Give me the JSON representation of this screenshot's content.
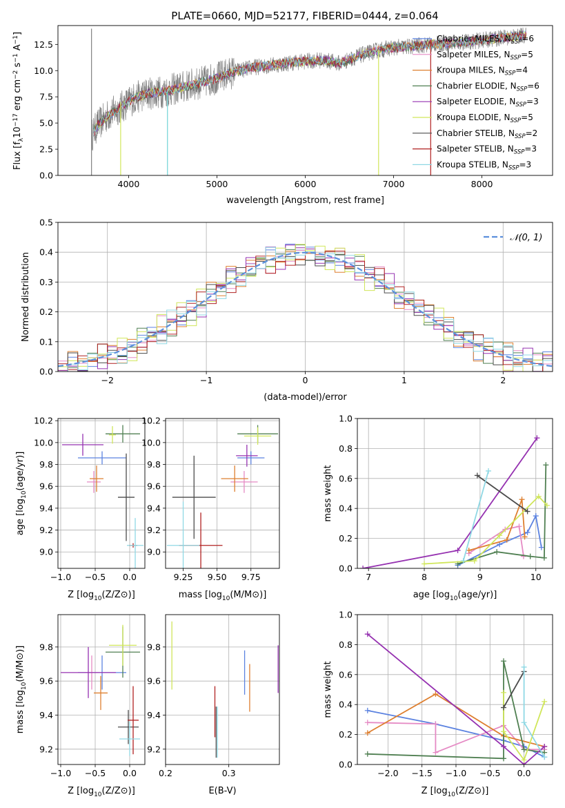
{
  "figure": {
    "title": "PLATE=0660, MJD=52177, FIBERID=0444, z=0.064"
  },
  "colors": {
    "chabrier_miles": "#5b82e0",
    "salpeter_miles": "#e58ac4",
    "kroupa_miles": "#de7f2f",
    "chabrier_elodie": "#4f7f51",
    "salpeter_elodie": "#9531b0",
    "kroupa_elodie": "#d0e65a",
    "chabrier_stelib": "#4b4b4b",
    "salpeter_stelib": "#b02020",
    "kroupa_stelib": "#8fd8e4",
    "data_gray": "#808080",
    "model_cyan": "#6fd3d6",
    "normal_curve": "#5b8fdc",
    "grid": "#b0b0b0"
  },
  "chart_data": [
    {
      "id": "spectrum",
      "type": "line",
      "title": "PLATE=0660, MJD=52177, FIBERID=0444, z=0.064",
      "xlabel": "wavelength [Angstrom, rest frame]",
      "ylabel_parts": [
        "Flux [f",
        "λ",
        "10",
        "−17",
        " erg cm",
        "−2",
        " s",
        "−1",
        " A",
        "−1",
        "]"
      ],
      "xlim": [
        3200,
        8800
      ],
      "ylim": [
        0,
        14.3
      ],
      "xticks": [
        4000,
        5000,
        6000,
        7000,
        8000
      ],
      "yticks": [
        0.0,
        2.5,
        5.0,
        7.5,
        10.0,
        12.5
      ],
      "grid": false,
      "legend_position": "right",
      "legend": [
        {
          "name": "Chabrier MILES",
          "n": "6",
          "color_key": "chabrier_miles"
        },
        {
          "name": "Salpeter MILES",
          "n": "5",
          "color_key": "salpeter_miles"
        },
        {
          "name": "Kroupa MILES",
          "n": "4",
          "color_key": "kroupa_miles"
        },
        {
          "name": "Chabrier ELODIE",
          "n": "6",
          "color_key": "chabrier_elodie"
        },
        {
          "name": "Salpeter ELODIE",
          "n": "3",
          "color_key": "salpeter_elodie"
        },
        {
          "name": "Kroupa ELODIE",
          "n": "5",
          "color_key": "kroupa_elodie"
        },
        {
          "name": "Chabrier STELIB",
          "n": "2",
          "color_key": "chabrier_stelib"
        },
        {
          "name": "Salpeter STELIB",
          "n": "3",
          "color_key": "salpeter_stelib"
        },
        {
          "name": "Kroupa STELIB",
          "n": "3",
          "color_key": "kroupa_stelib"
        }
      ],
      "legend_n_prefix": "N",
      "legend_n_sub": "SSP",
      "continuum": {
        "x": [
          3580,
          3650,
          3750,
          3850,
          3950,
          4050,
          4200,
          4400,
          4600,
          4800,
          5000,
          5200,
          5400,
          5600,
          5800,
          6000,
          6200,
          6400,
          6600,
          6800,
          7000,
          7200,
          7400,
          7600,
          7800,
          8000,
          8200,
          8500
        ],
        "y": [
          3.8,
          4.8,
          5.6,
          6.2,
          6.7,
          7.3,
          7.8,
          8.0,
          8.4,
          8.8,
          9.3,
          9.9,
          10.3,
          10.5,
          10.7,
          10.9,
          11.0,
          10.7,
          11.4,
          11.9,
          12.2,
          12.3,
          12.5,
          12.6,
          12.7,
          12.9,
          13.1,
          13.4
        ]
      },
      "spikes": [
        {
          "x": 3580,
          "y_low": 0.0,
          "y_high": 14.0,
          "color_key": "data_gray"
        },
        {
          "x": 4440,
          "y_low": 0.0,
          "y_high": 8.0,
          "color_key": "model_cyan"
        },
        {
          "x": 6830,
          "y_low": 0.0,
          "y_high": 12.0,
          "color_key": "kroupa_elodie"
        },
        {
          "x": 3910,
          "y_low": 0.0,
          "y_high": 7.0,
          "color_key": "kroupa_elodie"
        },
        {
          "x": 7420,
          "y_low": 0.0,
          "y_high": 12.8,
          "color_key": "salpeter_stelib"
        }
      ]
    },
    {
      "id": "residuals",
      "type": "histogram",
      "xlabel": "(data-model)/error",
      "ylabel": "Normed distribution",
      "xlim": [
        -2.5,
        2.5
      ],
      "ylim": [
        0,
        0.5
      ],
      "xticks": [
        -2,
        -1,
        0,
        1,
        2
      ],
      "yticks": [
        0.0,
        0.1,
        0.2,
        0.3,
        0.4,
        0.5
      ],
      "grid": true,
      "legend_position": "top-right",
      "legend": [
        {
          "name": "𝒩(0, 1)",
          "color_key": "normal_curve"
        }
      ],
      "bin_width": 0.1,
      "bin_start": -2.5,
      "series_jitter": [
        0.012,
        -0.015,
        0.02,
        -0.01,
        0.018,
        -0.02,
        0.008,
        -0.012,
        0.015
      ]
    },
    {
      "id": "age_vs_Z",
      "type": "errorbar",
      "xlabel": "Z [log10(Z/Z⊙)]",
      "ylabel": "age [log10(age/yr)]",
      "xlim": [
        -1.04,
        0.22
      ],
      "ylim": [
        8.85,
        10.22
      ],
      "xticks": [
        -1.0,
        -0.5,
        0.0
      ],
      "yticks": [
        9.0,
        9.2,
        9.4,
        9.6,
        9.8,
        10.0,
        10.2
      ],
      "grid": true,
      "points": [
        {
          "color_key": "chabrier_miles",
          "x": -0.4,
          "xerr": 0.35,
          "y": 9.86,
          "yerr": 0.06
        },
        {
          "color_key": "salpeter_miles",
          "x": -0.52,
          "xerr": 0.1,
          "y": 9.64,
          "yerr": 0.1
        },
        {
          "color_key": "kroupa_miles",
          "x": -0.48,
          "xerr": 0.1,
          "y": 9.67,
          "yerr": 0.12
        },
        {
          "color_key": "chabrier_elodie",
          "x": -0.1,
          "xerr": 0.25,
          "y": 10.08,
          "yerr": 0.08
        },
        {
          "color_key": "salpeter_elodie",
          "x": -0.68,
          "xerr": 0.3,
          "y": 9.98,
          "yerr": 0.1
        },
        {
          "color_key": "kroupa_elodie",
          "x": -0.25,
          "xerr": 0.05,
          "y": 10.07,
          "yerr": 0.08
        },
        {
          "color_key": "chabrier_stelib",
          "x": -0.05,
          "xerr": 0.12,
          "y": 9.5,
          "yerr": 0.4
        },
        {
          "color_key": "salpeter_stelib",
          "x": 0.05,
          "xerr": 0.06,
          "y": 9.06,
          "yerr": 0.02
        },
        {
          "color_key": "kroupa_stelib",
          "x": 0.08,
          "xerr": 0.12,
          "y": 9.06,
          "yerr": 0.25
        }
      ]
    },
    {
      "id": "age_vs_mass",
      "type": "errorbar",
      "xlabel": "mass [log10(M/M⊙)]",
      "ylabel": "",
      "xlim": [
        9.12,
        9.96
      ],
      "ylim": [
        8.85,
        10.22
      ],
      "xticks": [
        9.25,
        9.5,
        9.75
      ],
      "yticks": [
        9.0,
        9.2,
        9.4,
        9.6,
        9.8,
        10.0,
        10.2
      ],
      "grid": true,
      "points": [
        {
          "color_key": "chabrier_miles",
          "x": 9.75,
          "xerr": 0.1,
          "y": 9.86,
          "yerr": 0.06
        },
        {
          "color_key": "salpeter_miles",
          "x": 9.7,
          "xerr": 0.1,
          "y": 9.64,
          "yerr": 0.1
        },
        {
          "color_key": "kroupa_miles",
          "x": 9.63,
          "xerr": 0.1,
          "y": 9.67,
          "yerr": 0.12
        },
        {
          "color_key": "chabrier_elodie",
          "x": 9.8,
          "xerr": 0.15,
          "y": 10.08,
          "yerr": 0.08
        },
        {
          "color_key": "salpeter_elodie",
          "x": 9.72,
          "xerr": 0.08,
          "y": 9.88,
          "yerr": 0.1
        },
        {
          "color_key": "kroupa_elodie",
          "x": 9.8,
          "xerr": 0.1,
          "y": 10.06,
          "yerr": 0.08
        },
        {
          "color_key": "chabrier_stelib",
          "x": 9.33,
          "xerr": 0.16,
          "y": 9.5,
          "yerr": 0.38
        },
        {
          "color_key": "salpeter_stelib",
          "x": 9.38,
          "xerr": 0.16,
          "y": 9.06,
          "yerr": 0.3
        },
        {
          "color_key": "kroupa_stelib",
          "x": 9.25,
          "xerr": 0.12,
          "y": 9.06,
          "yerr": 0.4
        }
      ]
    },
    {
      "id": "mass_weight_vs_age",
      "type": "line",
      "xlabel": "age [log10(age/yr)]",
      "ylabel": "mass weight",
      "xlim": [
        6.8,
        10.3
      ],
      "ylim": [
        0,
        1.0
      ],
      "xticks": [
        7,
        8,
        9,
        10
      ],
      "yticks": [
        0.0,
        0.2,
        0.4,
        0.6,
        0.8,
        1.0
      ],
      "grid": true,
      "series": [
        {
          "color_key": "chabrier_miles",
          "x": [
            8.6,
            9.35,
            9.85,
            10.0,
            10.1
          ],
          "y": [
            0.02,
            0.16,
            0.24,
            0.35,
            0.14
          ]
        },
        {
          "color_key": "salpeter_miles",
          "x": [
            8.8,
            9.45,
            9.7,
            9.78
          ],
          "y": [
            0.1,
            0.26,
            0.28,
            0.08
          ]
        },
        {
          "color_key": "kroupa_miles",
          "x": [
            8.8,
            9.48,
            9.75,
            9.8
          ],
          "y": [
            0.12,
            0.19,
            0.46,
            0.21
          ]
        },
        {
          "color_key": "chabrier_elodie",
          "x": [
            8.6,
            9.3,
            9.9,
            10.15,
            10.18
          ],
          "y": [
            0.03,
            0.11,
            0.08,
            0.07,
            0.69
          ]
        },
        {
          "color_key": "salpeter_elodie",
          "x": [
            6.9,
            8.6,
            10.02
          ],
          "y": [
            0.0,
            0.12,
            0.87
          ]
        },
        {
          "color_key": "kroupa_elodie",
          "x": [
            8.0,
            8.9,
            9.35,
            10.05,
            10.2
          ],
          "y": [
            0.03,
            0.05,
            0.22,
            0.48,
            0.42
          ]
        },
        {
          "color_key": "chabrier_stelib",
          "x": [
            8.95,
            9.85
          ],
          "y": [
            0.62,
            0.38
          ]
        },
        {
          "color_key": "kroupa_stelib",
          "x": [
            8.7,
            9.15
          ],
          "y": [
            0.05,
            0.65
          ]
        }
      ]
    },
    {
      "id": "mass_vs_Z",
      "type": "errorbar",
      "xlabel": "Z [log10(Z/Z⊙)]",
      "ylabel": "mass [log10(M/M⊙)]",
      "xlim": [
        -1.04,
        0.22
      ],
      "ylim": [
        9.11,
        9.99
      ],
      "xticks": [
        -1.0,
        -0.5,
        0.0
      ],
      "yticks": [
        9.2,
        9.4,
        9.6,
        9.8
      ],
      "grid": true,
      "points": [
        {
          "color_key": "chabrier_miles",
          "x": -0.4,
          "xerr": 0.35,
          "y": 9.65,
          "yerr": 0.1
        },
        {
          "color_key": "salpeter_miles",
          "x": -0.55,
          "xerr": 0.1,
          "y": 9.65,
          "yerr": 0.1
        },
        {
          "color_key": "kroupa_miles",
          "x": -0.42,
          "xerr": 0.1,
          "y": 9.53,
          "yerr": 0.1
        },
        {
          "color_key": "chabrier_elodie",
          "x": -0.1,
          "xerr": 0.25,
          "y": 9.77,
          "yerr": 0.15
        },
        {
          "color_key": "salpeter_elodie",
          "x": -0.6,
          "xerr": 0.4,
          "y": 9.65,
          "yerr": 0.15
        },
        {
          "color_key": "kroupa_elodie",
          "x": -0.1,
          "xerr": 0.2,
          "y": 9.81,
          "yerr": 0.12
        },
        {
          "color_key": "chabrier_stelib",
          "x": -0.02,
          "xerr": 0.15,
          "y": 9.33,
          "yerr": 0.1
        },
        {
          "color_key": "salpeter_stelib",
          "x": 0.05,
          "xerr": 0.08,
          "y": 9.37,
          "yerr": 0.2
        },
        {
          "color_key": "kroupa_stelib",
          "x": 0.0,
          "xerr": 0.15,
          "y": 9.26,
          "yerr": 0.1
        }
      ]
    },
    {
      "id": "mass_vs_EBV",
      "type": "errorbar",
      "xlabel": "E(B-V)",
      "ylabel": "",
      "xlim": [
        0.2,
        0.38
      ],
      "ylim": [
        9.11,
        9.99
      ],
      "xticks": [
        0.2,
        0.3
      ],
      "yticks": [
        9.2,
        9.4,
        9.6,
        9.8
      ],
      "grid": true,
      "points": [
        {
          "color_key": "chabrier_miles",
          "x": 0.325,
          "y": 9.65,
          "yerr": 0.13
        },
        {
          "color_key": "kroupa_miles",
          "x": 0.333,
          "y": 9.56,
          "yerr": 0.14
        },
        {
          "color_key": "salpeter_elodie",
          "x": 0.378,
          "y": 9.67,
          "yerr": 0.14
        },
        {
          "color_key": "kroupa_elodie",
          "x": 0.21,
          "y": 9.75,
          "yerr": 0.2
        },
        {
          "color_key": "chabrier_stelib",
          "x": 0.28,
          "y": 9.3,
          "yerr": 0.15
        },
        {
          "color_key": "salpeter_stelib",
          "x": 0.278,
          "y": 9.42,
          "yerr": 0.15
        },
        {
          "color_key": "kroupa_stelib",
          "x": 0.282,
          "y": 9.3,
          "yerr": 0.15
        }
      ]
    },
    {
      "id": "mass_weight_vs_Z",
      "type": "line",
      "xlabel": "Z [log10(Z/Z⊙)]",
      "ylabel": "mass weight",
      "xlim": [
        -2.45,
        0.42
      ],
      "ylim": [
        0,
        1.0
      ],
      "xticks": [
        -2.0,
        -1.5,
        -1.0,
        -0.5,
        0.0
      ],
      "yticks": [
        0.0,
        0.2,
        0.4,
        0.6,
        0.8,
        1.0
      ],
      "grid": true,
      "series": [
        {
          "color_key": "chabrier_miles",
          "x": [
            -2.3,
            -1.3,
            -0.3,
            0.0,
            0.3
          ],
          "y": [
            0.36,
            0.27,
            0.16,
            0.12,
            0.05
          ]
        },
        {
          "color_key": "salpeter_miles",
          "x": [
            -2.3,
            -1.3,
            -1.3,
            -0.3,
            0.0,
            0.3
          ],
          "y": [
            0.28,
            0.27,
            0.08,
            0.26,
            0.1,
            0.1
          ]
        },
        {
          "color_key": "kroupa_miles",
          "x": [
            -2.3,
            -1.3,
            -0.3,
            0.3
          ],
          "y": [
            0.21,
            0.47,
            0.19,
            0.12
          ]
        },
        {
          "color_key": "chabrier_elodie",
          "x": [
            -2.3,
            -0.3,
            -0.3,
            0.0,
            0.3
          ],
          "y": [
            0.07,
            0.04,
            0.69,
            0.1,
            0.08
          ]
        },
        {
          "color_key": "salpeter_elodie",
          "x": [
            -2.3,
            -0.3,
            0.0,
            0.3
          ],
          "y": [
            0.87,
            0.12,
            0.0,
            0.12
          ]
        },
        {
          "color_key": "kroupa_elodie",
          "x": [
            -0.3,
            -0.3,
            0.0,
            0.3
          ],
          "y": [
            0.48,
            0.22,
            0.03,
            0.42
          ]
        },
        {
          "color_key": "chabrier_stelib",
          "x": [
            -0.3,
            0.0
          ],
          "y": [
            0.38,
            0.62
          ]
        },
        {
          "color_key": "kroupa_stelib",
          "x": [
            0.0,
            0.0,
            0.3
          ],
          "y": [
            0.65,
            0.28,
            0.05
          ]
        }
      ]
    }
  ]
}
